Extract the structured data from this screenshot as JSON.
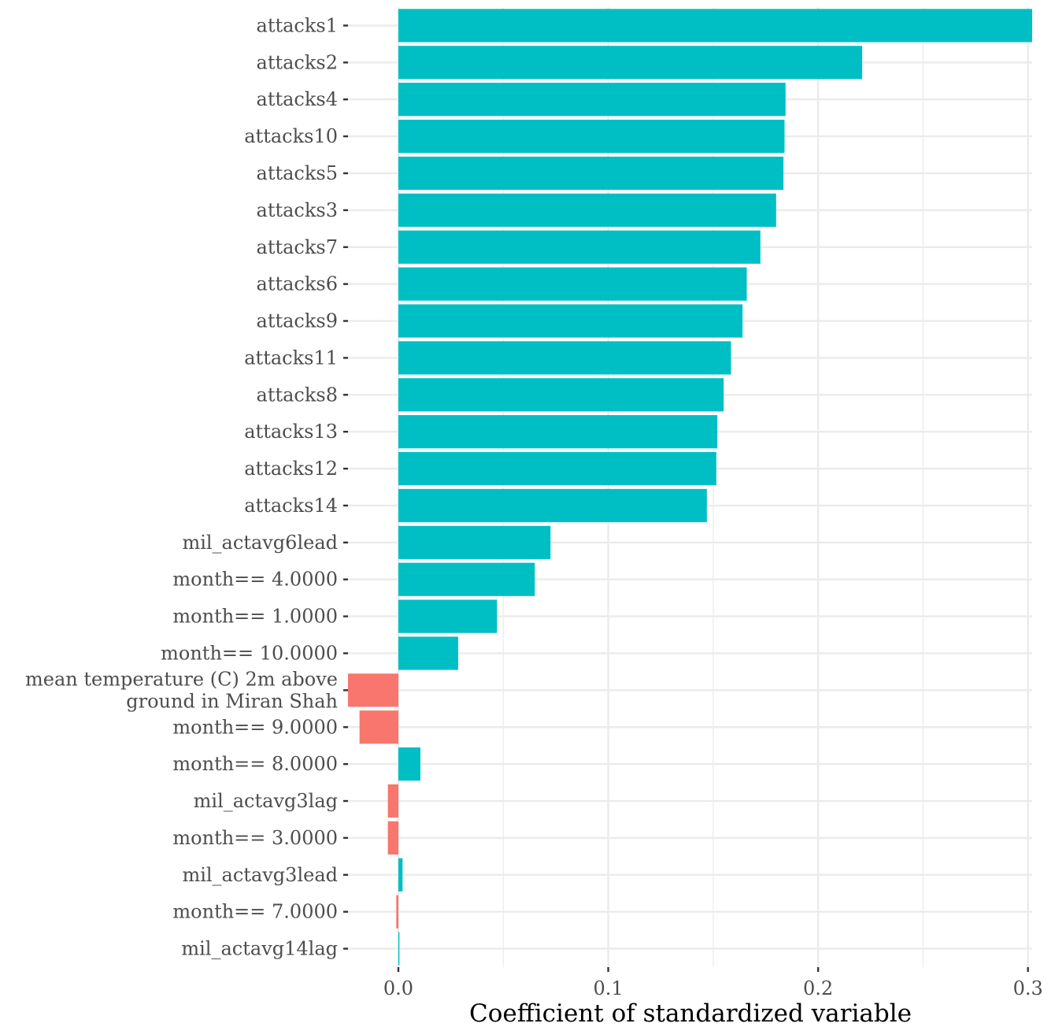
{
  "chart_data": {
    "type": "bar",
    "orientation": "horizontal",
    "title": "",
    "xlabel": "Coefficient of standardized variable",
    "ylabel": "",
    "xlim": [
      -0.024,
      0.302
    ],
    "x_ticks": [
      0.0,
      0.1,
      0.2,
      0.3
    ],
    "x_tick_labels": [
      "0.0",
      "0.1",
      "0.2",
      "0.3"
    ],
    "grid": true,
    "legend": "none",
    "colors": {
      "positive": "#00BFC4",
      "negative": "#F8766D",
      "grid": "#ebebeb",
      "tick": "#333333"
    },
    "bars": [
      {
        "label": "attacks1",
        "value": 0.302
      },
      {
        "label": "attacks2",
        "value": 0.221
      },
      {
        "label": "attacks4",
        "value": 0.1845
      },
      {
        "label": "attacks10",
        "value": 0.184
      },
      {
        "label": "attacks5",
        "value": 0.1835
      },
      {
        "label": "attacks3",
        "value": 0.18
      },
      {
        "label": "attacks7",
        "value": 0.1725
      },
      {
        "label": "attacks6",
        "value": 0.166
      },
      {
        "label": "attacks9",
        "value": 0.164
      },
      {
        "label": "attacks11",
        "value": 0.1585
      },
      {
        "label": "attacks8",
        "value": 0.155
      },
      {
        "label": "attacks13",
        "value": 0.152
      },
      {
        "label": "attacks12",
        "value": 0.1515
      },
      {
        "label": "attacks14",
        "value": 0.147
      },
      {
        "label": "mil_actavg6lead",
        "value": 0.0725
      },
      {
        "label": "month== 4.0000",
        "value": 0.065
      },
      {
        "label": "month== 1.0000",
        "value": 0.047
      },
      {
        "label": "month== 10.0000",
        "value": 0.0285
      },
      {
        "label": "mean temperature (C) 2m above\nground in Miran Shah",
        "value": -0.024
      },
      {
        "label": "month== 9.0000",
        "value": -0.0185
      },
      {
        "label": "month== 8.0000",
        "value": 0.0105
      },
      {
        "label": "mil_actavg3lag",
        "value": -0.005
      },
      {
        "label": "month== 3.0000",
        "value": -0.005
      },
      {
        "label": "mil_actavg3lead",
        "value": 0.002
      },
      {
        "label": "month== 7.0000",
        "value": -0.001
      },
      {
        "label": "mil_actavg14lag",
        "value": 0.0005
      }
    ]
  }
}
